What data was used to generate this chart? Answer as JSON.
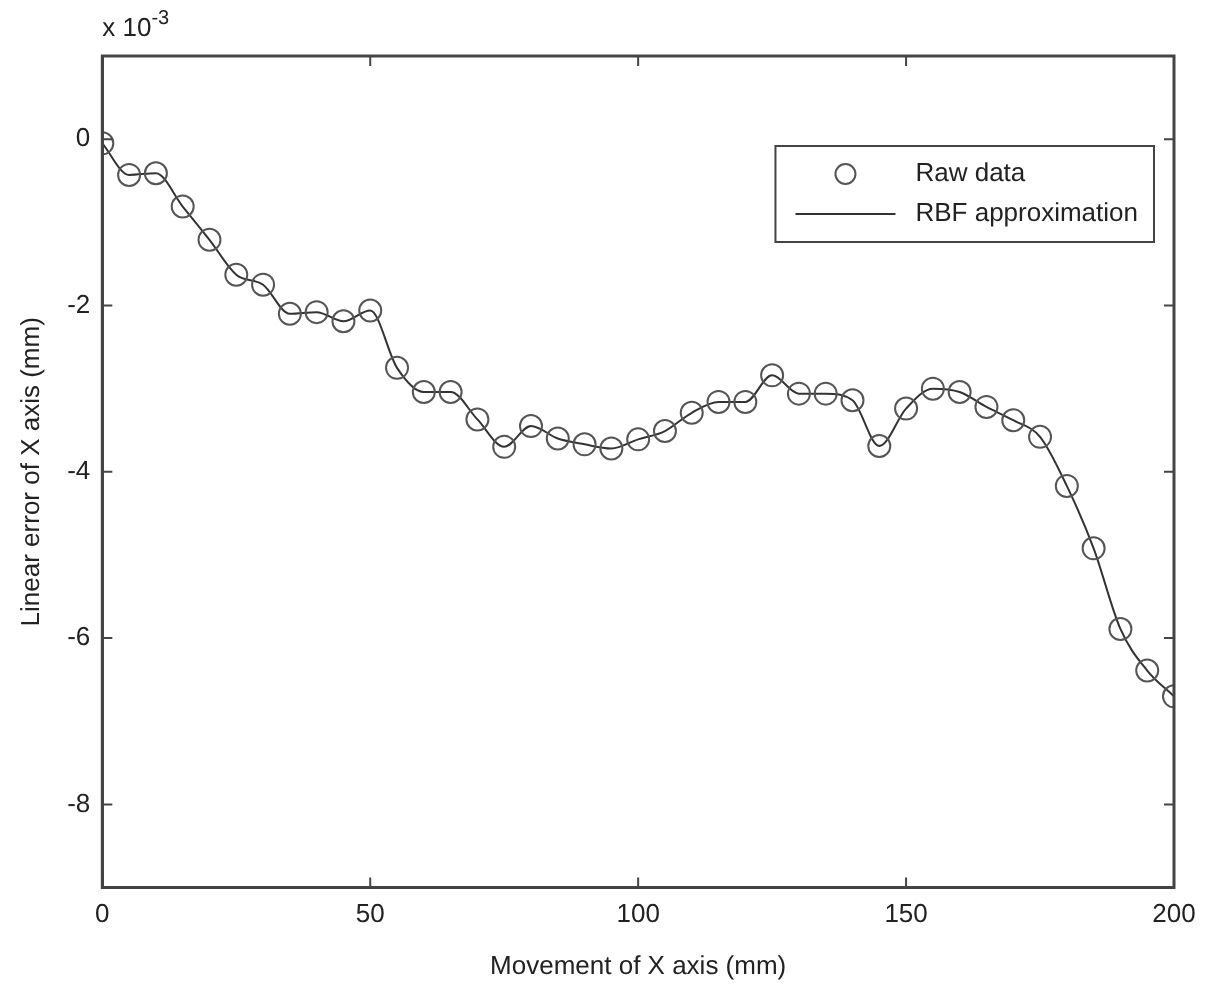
{
  "chart_data": {
    "type": "scatter",
    "xlabel": "Movement of X axis (mm)",
    "ylabel": "Linear error of X axis (mm)",
    "annotations": [
      "x 10$^{-3}$"
    ],
    "x": [
      0,
      5,
      10,
      15,
      20,
      25,
      30,
      35,
      40,
      45,
      50,
      55,
      60,
      65,
      70,
      75,
      80,
      85,
      90,
      95,
      100,
      105,
      110,
      115,
      120,
      125,
      130,
      135,
      140,
      145,
      150,
      155,
      160,
      165,
      170,
      175,
      180,
      185,
      190,
      195,
      200
    ],
    "xlim": [
      0,
      200
    ],
    "xticks": [
      0,
      50,
      100,
      150,
      200
    ],
    "ylim": [
      -9,
      1
    ],
    "yticks": [
      {
        "value": -8,
        "label": "-8"
      },
      {
        "value": -6,
        "label": "-6"
      },
      {
        "value": -4,
        "label": "-4"
      },
      {
        "value": -2,
        "label": "-2"
      },
      0
    ],
    "grid": false,
    "legend": "top right",
    "series": [
      {
        "name": "Raw data",
        "marker": "circle",
        "color": "#555555",
        "values": [
          -0.05,
          -0.43,
          -0.41,
          -0.81,
          -1.21,
          -1.63,
          -1.75,
          -2.1,
          -2.08,
          -2.19,
          -2.06,
          -2.75,
          -3.04,
          -3.04,
          -3.37,
          -3.7,
          -3.45,
          -3.6,
          -3.67,
          -3.72,
          -3.61,
          -3.51,
          -3.29,
          -3.16,
          -3.16,
          -2.84,
          -3.06,
          -3.06,
          -3.14,
          -3.69,
          -3.24,
          -3.0,
          -3.04,
          -3.22,
          -3.38,
          -3.58,
          -4.17,
          -4.92,
          -5.89,
          -6.39,
          -6.7
        ]
      },
      {
        "name": "RBF approximation",
        "type": "line",
        "marker": "none",
        "line_style": "solid",
        "color": "#333333",
        "values": [
          -0.05,
          -0.43,
          -0.41,
          -0.81,
          -1.21,
          -1.63,
          -1.75,
          -2.1,
          -2.08,
          -2.19,
          -2.06,
          -2.75,
          -3.04,
          -3.04,
          -3.37,
          -3.7,
          -3.45,
          -3.6,
          -3.67,
          -3.72,
          -3.61,
          -3.51,
          -3.29,
          -3.16,
          -3.16,
          -2.84,
          -3.06,
          -3.06,
          -3.14,
          -3.69,
          -3.24,
          -3.0,
          -3.04,
          -3.22,
          -3.38,
          -3.58,
          -4.17,
          -4.92,
          -5.89,
          -6.39,
          -6.7
        ]
      }
    ]
  }
}
